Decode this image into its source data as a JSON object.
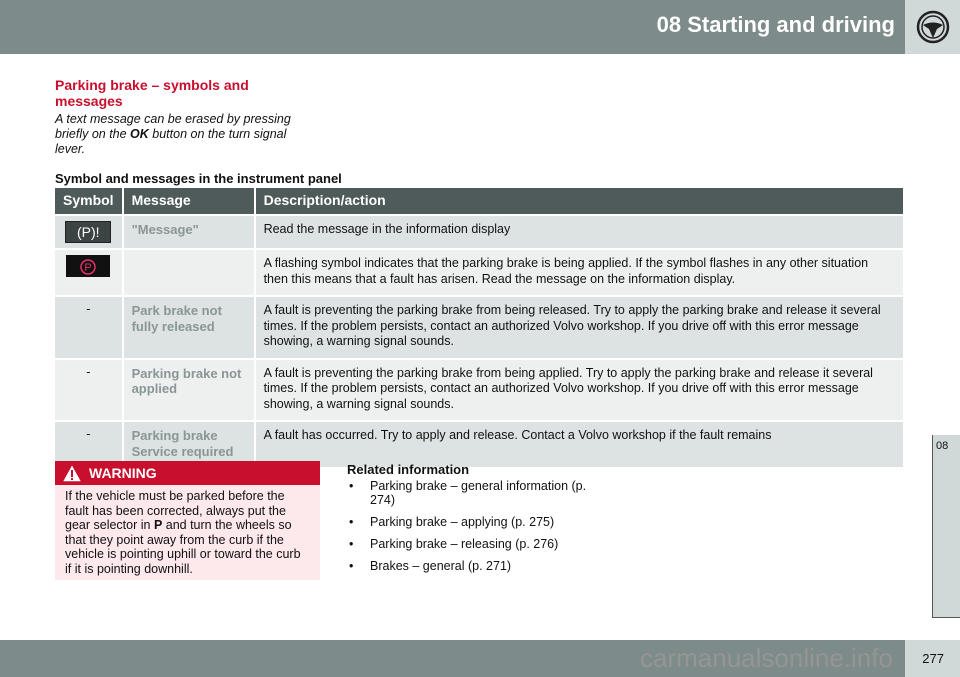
{
  "header": {
    "title": "08 Starting and driving",
    "icon": "steering-wheel-icon"
  },
  "section": {
    "title": "Parking brake – symbols and messages",
    "intro_pre": "A text message can be erased by pressing briefly on the ",
    "intro_bold": "OK",
    "intro_post": " button on the turn signal lever."
  },
  "table": {
    "caption": "Symbol and messages in the instrument panel",
    "headers": [
      "Symbol",
      "Message",
      "Description/action"
    ],
    "rows": [
      {
        "symbol": "(P)!",
        "message": "\"Message\"",
        "description": "Read the message in the information display"
      },
      {
        "symbol": "parking-brake-red-icon",
        "message": "",
        "description": "A flashing symbol indicates that the parking brake is being applied. If the symbol flashes in any other situation then this means that a fault has arisen. Read the message on the information display."
      },
      {
        "symbol": "-",
        "message": "Park brake not fully released",
        "description": "A fault is preventing the parking brake from being released. Try to apply the parking brake and release it several times. If the problem persists, contact an authorized Volvo workshop. If you drive off with this error message showing, a warning signal sounds."
      },
      {
        "symbol": "-",
        "message": "Parking brake not applied",
        "description": "A fault is preventing the parking brake from being applied. Try to apply the parking brake and release it several times. If the problem persists, contact an authorized Volvo workshop. If you drive off with this error message showing, a warning signal sounds."
      },
      {
        "symbol": "-",
        "message": "Parking brake Service required",
        "description": "A fault has occurred. Try to apply and release. Contact a Volvo workshop if the fault remains"
      }
    ]
  },
  "warning": {
    "title": "WARNING",
    "text_pre": "If the vehicle must be parked before the fault has been corrected, always put the gear selector in ",
    "text_bold": "P",
    "text_post": " and turn the wheels so that they point away from the curb if the vehicle is pointing uphill or toward the curb if it is pointing downhill."
  },
  "related": {
    "title": "Related information",
    "items": [
      "Parking brake – general information (p. 274)",
      "Parking brake – applying (p. 275)",
      "Parking brake – releasing (p. 276)",
      "Brakes – general (p. 271)"
    ]
  },
  "side_tab": "08",
  "page_number": "277",
  "watermark": "carmanualsonline.info",
  "colors": {
    "accent": "#c8102e",
    "header": "#7d8b8a",
    "table_header": "#4f5b5a"
  }
}
